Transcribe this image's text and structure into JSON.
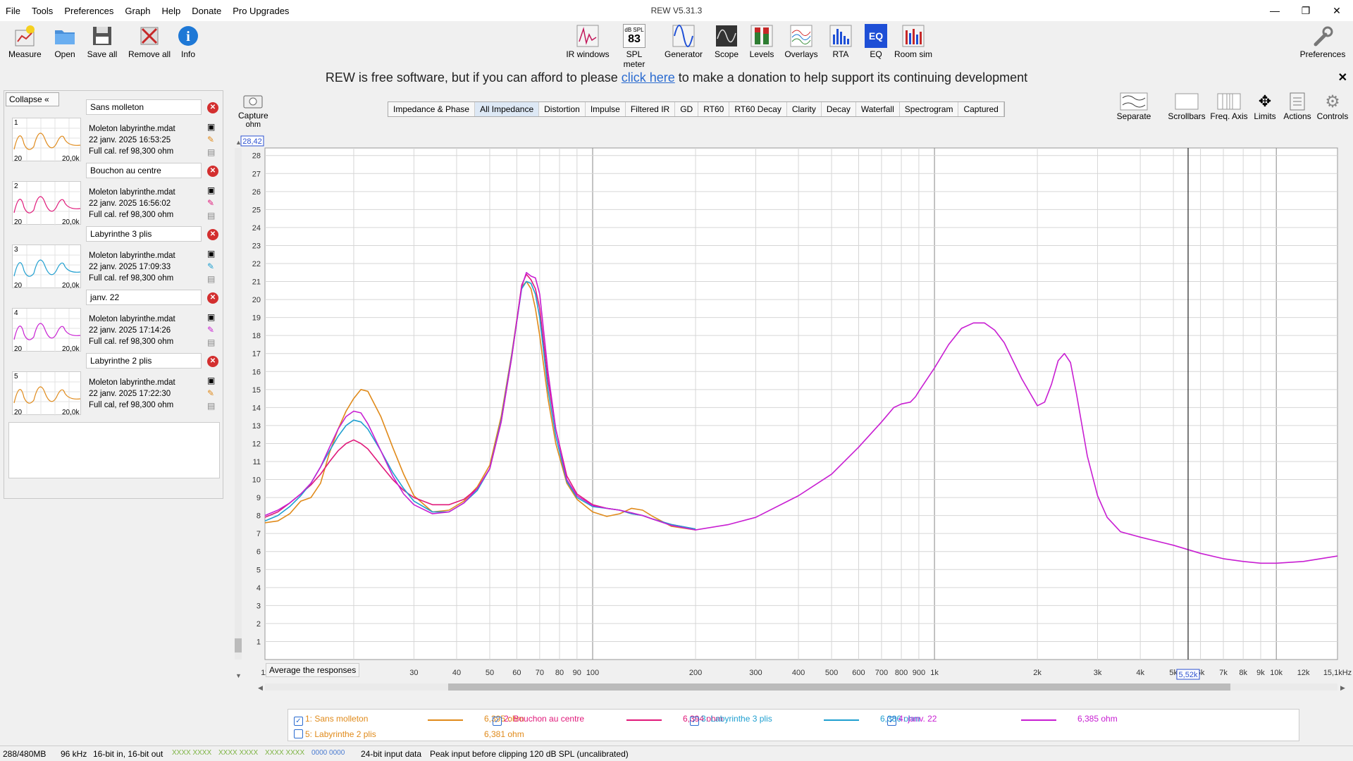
{
  "window": {
    "title": "REW V5.31.3"
  },
  "menu": [
    "File",
    "Tools",
    "Preferences",
    "Graph",
    "Help",
    "Donate",
    "Pro Upgrades"
  ],
  "toolbar_left": [
    {
      "label": "Measure",
      "icon": "measure-icon"
    },
    {
      "label": "Open",
      "icon": "folder-icon"
    },
    {
      "label": "Save all",
      "icon": "floppy-icon"
    },
    {
      "label": "Remove all",
      "icon": "remove-icon"
    },
    {
      "label": "Info",
      "icon": "info-icon"
    }
  ],
  "toolbar_center": [
    {
      "label": "IR windows"
    },
    {
      "label": "SPL meter",
      "badge_top": "dB SPL",
      "badge_value": "83"
    },
    {
      "label": "Generator"
    },
    {
      "label": "Scope"
    },
    {
      "label": "Levels"
    },
    {
      "label": "Overlays"
    },
    {
      "label": "RTA"
    },
    {
      "label": "EQ",
      "badge_value": "EQ"
    },
    {
      "label": "Room sim"
    }
  ],
  "toolbar_right": {
    "label": "Preferences",
    "icon": "wrench-icon"
  },
  "donation": {
    "before": "REW is free software, but if you can afford to please ",
    "link": "click here",
    "after": " to make a donation to help support its continuing development"
  },
  "panel": {
    "collapse_label": "Collapse"
  },
  "measurements": [
    {
      "index": "1",
      "name": "Sans molleton",
      "file": "Moleton labyrinthe.mdat",
      "date": "22 janv. 2025 16:53:25",
      "cal": "Full cal. ref 98,300 ohm",
      "thumb_lo": "20",
      "thumb_hi": "20,0k",
      "color": "#e08a1a"
    },
    {
      "index": "2",
      "name": "Bouchon au centre",
      "file": "Moleton labyrinthe.mdat",
      "date": "22 janv. 2025 16:56:02",
      "cal": "Full cal. ref 98,300 ohm",
      "thumb_lo": "20",
      "thumb_hi": "20,0k",
      "color": "#e0197a"
    },
    {
      "index": "3",
      "name": "Labyrinthe 3 plis",
      "file": "Moleton labyrinthe.mdat",
      "date": "22 janv. 2025 17:09:33",
      "cal": "Full cal. ref 98,300 ohm",
      "thumb_lo": "20",
      "thumb_hi": "20,0k",
      "color": "#1f9fd0"
    },
    {
      "index": "4",
      "name": "janv. 22",
      "file": "Moleton labyrinthe.mdat",
      "date": "22 janv. 2025 17:14:26",
      "cal": "Full cal. ref 98,300 ohm",
      "thumb_lo": "20",
      "thumb_hi": "20,0k",
      "color": "#c81ed2"
    },
    {
      "index": "5",
      "name": "Labyrinthe 2 plis",
      "file": "Moleton labyrinthe.mdat",
      "date": "22 janv. 2025 17:22:30",
      "cal": "Full cal, ref 98,300 ohm",
      "thumb_lo": "20",
      "thumb_hi": "20,0k",
      "color": "#e08a1a"
    }
  ],
  "capture": {
    "label": "Capture",
    "unit": "ohm"
  },
  "graph_tabs": [
    "Impedance & Phase",
    "All Impedance",
    "Distortion",
    "Impulse",
    "Filtered IR",
    "GD",
    "RT60",
    "RT60 Decay",
    "Clarity",
    "Decay",
    "Waterfall",
    "Spectrogram",
    "Captured"
  ],
  "selected_tab": "All Impedance",
  "right_tools": [
    "Separate",
    "Scrollbars",
    "Freq. Axis",
    "Limits",
    "Actions",
    "Controls"
  ],
  "average_label": "Average the responses",
  "cursor": {
    "y_readout": "28,42",
    "x_readout": "5,52k"
  },
  "legend": [
    {
      "label": "1: Sans molleton",
      "value": "6,395 ohm",
      "color": "#e08a1a",
      "checked": true
    },
    {
      "label": "2: Bouchon au centre",
      "value": "6,394 ohm",
      "color": "#e0197a",
      "checked": true
    },
    {
      "label": "3: Labyrinthe 3 plis",
      "value": "6,386 ohm",
      "color": "#1f9fd0",
      "checked": true
    },
    {
      "label": "4: janv. 22",
      "value": "6,385 ohm",
      "color": "#c81ed2",
      "checked": true
    },
    {
      "label": "5: Labyrinthe 2 plis",
      "value": "6,381 ohm",
      "color": "#e08a1a",
      "checked": false
    }
  ],
  "status": {
    "memory": "288/480MB",
    "rate": "96 kHz",
    "bits": "16-bit in, 16-bit out",
    "levels": [
      "XXXX XXXX",
      "XXXX XXXX",
      "XXXX XXXX",
      "0000 0000"
    ],
    "input": "24-bit input data",
    "peak": "Peak input before clipping 120 dB SPL (uncalibrated)"
  },
  "chart_data": {
    "type": "line",
    "xlabel": "",
    "ylabel": "ohm",
    "x_scale": "log",
    "xlim": [
      11,
      15100
    ],
    "ylim": [
      0,
      28.42
    ],
    "grid": true,
    "x_ticks": [
      {
        "v": 11,
        "t": "11"
      },
      {
        "v": 20,
        "t": "20"
      },
      {
        "v": 30,
        "t": "30"
      },
      {
        "v": 40,
        "t": "40"
      },
      {
        "v": 50,
        "t": "50"
      },
      {
        "v": 60,
        "t": "60"
      },
      {
        "v": 70,
        "t": "70"
      },
      {
        "v": 80,
        "t": "80"
      },
      {
        "v": 90,
        "t": "90"
      },
      {
        "v": 100,
        "t": "100"
      },
      {
        "v": 200,
        "t": "200"
      },
      {
        "v": 300,
        "t": "300"
      },
      {
        "v": 400,
        "t": "400"
      },
      {
        "v": 500,
        "t": "500"
      },
      {
        "v": 600,
        "t": "600"
      },
      {
        "v": 700,
        "t": "700"
      },
      {
        "v": 800,
        "t": "800"
      },
      {
        "v": 900,
        "t": "900"
      },
      {
        "v": 1000,
        "t": "1k"
      },
      {
        "v": 2000,
        "t": "2k"
      },
      {
        "v": 3000,
        "t": "3k"
      },
      {
        "v": 4000,
        "t": "4k"
      },
      {
        "v": 5000,
        "t": "5k"
      },
      {
        "v": 6000,
        "t": "6k"
      },
      {
        "v": 7000,
        "t": "7k"
      },
      {
        "v": 8000,
        "t": "8k"
      },
      {
        "v": 9000,
        "t": "9k"
      },
      {
        "v": 10000,
        "t": "10k"
      },
      {
        "v": 12000,
        "t": "12k"
      },
      {
        "v": 15100,
        "t": "15,1kHz"
      }
    ],
    "y_ticks": [
      1,
      2,
      3,
      4,
      5,
      6,
      7,
      8,
      9,
      10,
      11,
      12,
      13,
      14,
      15,
      16,
      17,
      18,
      19,
      20,
      21,
      22,
      23,
      24,
      25,
      26,
      27,
      28
    ],
    "cursor_x": 5520,
    "series": [
      {
        "name": "1: Sans molleton",
        "color": "#e08a1a",
        "x": [
          11,
          12,
          13,
          14,
          15,
          16,
          17,
          18,
          19,
          20,
          21,
          22,
          24,
          26,
          28,
          30,
          34,
          38,
          42,
          46,
          50,
          54,
          58,
          62,
          64,
          66,
          68,
          70,
          74,
          78,
          84,
          90,
          100,
          110,
          120,
          130,
          140,
          150,
          170,
          200
        ],
        "y": [
          7.6,
          7.7,
          8.1,
          8.8,
          9,
          9.8,
          11.5,
          12.8,
          13.8,
          14.5,
          15,
          14.9,
          13.5,
          11.8,
          10.3,
          9.1,
          8.2,
          8.3,
          8.8,
          9.6,
          10.8,
          13.5,
          17,
          20.7,
          21,
          20.6,
          19.5,
          18,
          14.5,
          12,
          9.8,
          8.9,
          8.2,
          7.95,
          8.1,
          8.4,
          8.3,
          7.95,
          7.4,
          7.2
        ]
      },
      {
        "name": "2: Bouchon au centre",
        "color": "#e0197a",
        "x": [
          11,
          12,
          13,
          14,
          15,
          16,
          17,
          18,
          19,
          20,
          21,
          22,
          24,
          26,
          28,
          30,
          34,
          38,
          42,
          46,
          50,
          54,
          58,
          62,
          64,
          66,
          68,
          70,
          74,
          78,
          84,
          90,
          100,
          110,
          120,
          130,
          140,
          150,
          170,
          200
        ],
        "y": [
          7.9,
          8.2,
          8.7,
          9.2,
          9.7,
          10.3,
          11,
          11.6,
          12,
          12.2,
          12,
          11.7,
          10.8,
          10,
          9.4,
          9,
          8.6,
          8.6,
          8.9,
          9.5,
          10.6,
          13.2,
          16.8,
          20.8,
          21.4,
          21.1,
          20.6,
          19.5,
          15.5,
          12.8,
          10.2,
          9.2,
          8.6,
          8.4,
          8.3,
          8.1,
          8,
          7.8,
          7.5,
          7.25
        ]
      },
      {
        "name": "3: Labyrinthe 3 plis",
        "color": "#1f9fd0",
        "x": [
          11,
          12,
          13,
          14,
          15,
          16,
          17,
          18,
          19,
          20,
          21,
          22,
          24,
          26,
          28,
          30,
          34,
          38,
          42,
          46,
          50,
          54,
          58,
          62,
          64,
          66,
          68,
          70,
          74,
          78,
          84,
          90,
          100,
          110,
          120,
          130,
          140,
          150,
          170,
          200
        ],
        "y": [
          7.7,
          8,
          8.5,
          9.1,
          9.8,
          10.7,
          11.6,
          12.4,
          13,
          13.3,
          13.2,
          12.8,
          11.6,
          10.4,
          9.5,
          8.8,
          8.2,
          8.2,
          8.7,
          9.4,
          10.6,
          13.3,
          16.9,
          20.6,
          21,
          20.9,
          20.3,
          19,
          15,
          12.4,
          9.9,
          9,
          8.5,
          8.4,
          8.3,
          8.1,
          8,
          7.8,
          7.5,
          7.25
        ]
      },
      {
        "name": "4: janv. 22",
        "color": "#c81ed2",
        "x": [
          11,
          12,
          13,
          14,
          15,
          16,
          17,
          18,
          19,
          20,
          21,
          22,
          24,
          26,
          28,
          30,
          34,
          38,
          42,
          46,
          50,
          54,
          58,
          62,
          64,
          66,
          68,
          70,
          74,
          78,
          84,
          90,
          100,
          110,
          120,
          130,
          140,
          150,
          170,
          200,
          250,
          300,
          400,
          500,
          600,
          700,
          760,
          800,
          850,
          880,
          900,
          1000,
          1100,
          1200,
          1300,
          1400,
          1500,
          1600,
          1800,
          2000,
          2100,
          2200,
          2300,
          2400,
          2500,
          2600,
          2800,
          3000,
          3200,
          3500,
          4000,
          5000,
          6000,
          7000,
          8000,
          9000,
          10000,
          12000,
          15100
        ],
        "y": [
          8,
          8.3,
          8.7,
          9.2,
          9.8,
          10.7,
          11.8,
          12.8,
          13.5,
          13.8,
          13.7,
          13.1,
          11.6,
          10.2,
          9.2,
          8.6,
          8.1,
          8.2,
          8.7,
          9.5,
          10.6,
          13.2,
          16.8,
          20.7,
          21.5,
          21.3,
          21.2,
          20.3,
          16,
          12.8,
          10,
          9.1,
          8.55,
          8.4,
          8.3,
          8.15,
          8,
          7.8,
          7.45,
          7.2,
          7.5,
          7.9,
          9.1,
          10.3,
          11.8,
          13.2,
          14,
          14.2,
          14.3,
          14.6,
          14.9,
          16.2,
          17.5,
          18.4,
          18.7,
          18.7,
          18.3,
          17.6,
          15.6,
          14.1,
          14.3,
          15.3,
          16.6,
          17,
          16.5,
          14.8,
          11.3,
          9.1,
          7.9,
          7.1,
          6.8,
          6.35,
          5.9,
          5.6,
          5.45,
          5.35,
          5.35,
          5.45,
          5.75
        ]
      }
    ]
  }
}
